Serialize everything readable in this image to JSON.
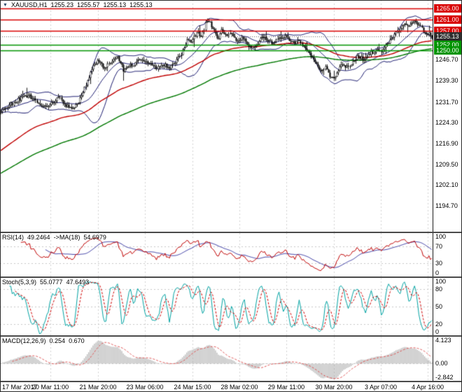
{
  "legend": {
    "symbol": "XAUUSD,H1",
    "open": "1255.23",
    "high": "1255.57",
    "low": "1255.13",
    "close": "1255.13"
  },
  "colors": {
    "resistance_line": "#d90000",
    "support_line": "#009400",
    "current_price_line": "#666666",
    "bollinger": "#1a1a70",
    "ma_fast": "#c00000",
    "ma_slow": "#007800",
    "rsi_line": "#c00000",
    "rsi_ma_line": "#4343a8",
    "stoch_main": "#00a3a3",
    "stoch_signal": "#d00000",
    "macd_hist": "#b4b4b4",
    "macd_signal": "#e05555",
    "grid": "#d2d2d2",
    "level_dash": "#c8c8c8",
    "candle": "#000000"
  },
  "indicators": {
    "rsi": {
      "title": "RSI(14)",
      "value": "49.2464",
      "ma_title": "->MA(18)",
      "ma_value": "54.6979",
      "ticks": [
        "100",
        "70",
        "30",
        "0"
      ],
      "levels": [
        70,
        30
      ],
      "range": [
        0,
        100
      ]
    },
    "stoch": {
      "title": "Stoch(5,3,9)",
      "value": "55.0777",
      "signal_value": "47.6493",
      "ticks": [
        "100",
        "80",
        "50",
        "20",
        "0"
      ],
      "levels": [
        80,
        50,
        20
      ],
      "range": [
        0,
        100
      ]
    },
    "macd": {
      "title": "MACD(12,26,9)",
      "value": "0.254",
      "signal_value": "0.670",
      "ticks": [
        "4.123",
        "0.00",
        "-2.842"
      ],
      "range": [
        -3.1,
        4.6
      ]
    }
  },
  "chart_data": {
    "type": "candlestick",
    "symbol": "XAUUSD",
    "timeframe": "H1",
    "last_quote": {
      "open": 1255.23,
      "high": 1255.57,
      "low": 1255.13,
      "close": 1255.13
    },
    "current_price": 1255.13,
    "bars": 300,
    "y_axis": {
      "ticks": [
        "1246.70",
        "1239.30",
        "1231.70",
        "1224.30",
        "1216.90",
        "1209.50",
        "1202.10",
        "1194.70"
      ],
      "top": 1268.0,
      "bottom": 1185.5
    },
    "price_levels": [
      {
        "value": 1265.0,
        "label": "1265.00",
        "type": "resistance"
      },
      {
        "value": 1261.0,
        "label": "1261.00",
        "type": "resistance"
      },
      {
        "value": 1257.0,
        "label": "1257.00",
        "type": "resistance"
      },
      {
        "value": 1255.13,
        "label": "1255.13",
        "type": "current"
      },
      {
        "value": 1252.0,
        "label": "1252.00",
        "type": "support"
      },
      {
        "value": 1250.0,
        "label": "1250.00",
        "type": "support"
      }
    ],
    "x_labels": [
      {
        "text": "17 Mar 2017",
        "f": 0.038
      },
      {
        "text": "20 Mar 11:00",
        "f": 0.1165
      },
      {
        "text": "21 Mar 20:00",
        "f": 0.2265
      },
      {
        "text": "23 Mar 06:00",
        "f": 0.335
      },
      {
        "text": "24 Mar 15:00",
        "f": 0.445
      },
      {
        "text": "28 Mar 02:00",
        "f": 0.5534
      },
      {
        "text": "29 Mar 11:00",
        "f": 0.6618
      },
      {
        "text": "30 Mar 20:00",
        "f": 0.7718
      },
      {
        "text": "3 Apr 07:00",
        "f": 0.8803
      },
      {
        "text": "4 Apr 16:00",
        "f": 0.9887
      }
    ],
    "price_path": [
      [
        0.0,
        1229.0
      ],
      [
        0.02,
        1230.5
      ],
      [
        0.04,
        1232.5
      ],
      [
        0.06,
        1234.0
      ],
      [
        0.075,
        1233.0
      ],
      [
        0.09,
        1231.0
      ],
      [
        0.105,
        1229.5
      ],
      [
        0.12,
        1231.5
      ],
      [
        0.135,
        1233.0
      ],
      [
        0.15,
        1230.5
      ],
      [
        0.165,
        1228.8
      ],
      [
        0.18,
        1231.5
      ],
      [
        0.195,
        1237.0
      ],
      [
        0.21,
        1243.5
      ],
      [
        0.225,
        1246.5
      ],
      [
        0.24,
        1244.0
      ],
      [
        0.255,
        1246.0
      ],
      [
        0.27,
        1247.5
      ],
      [
        0.285,
        1243.0
      ],
      [
        0.3,
        1244.5
      ],
      [
        0.315,
        1246.0
      ],
      [
        0.33,
        1246.5
      ],
      [
        0.345,
        1245.0
      ],
      [
        0.36,
        1243.8
      ],
      [
        0.375,
        1245.5
      ],
      [
        0.39,
        1243.5
      ],
      [
        0.405,
        1246.0
      ],
      [
        0.42,
        1249.5
      ],
      [
        0.432,
        1253.5
      ],
      [
        0.444,
        1253.0
      ],
      [
        0.455,
        1257.0
      ],
      [
        0.465,
        1255.0
      ],
      [
        0.475,
        1259.5
      ],
      [
        0.483,
        1261.0
      ],
      [
        0.492,
        1257.5
      ],
      [
        0.502,
        1254.0
      ],
      [
        0.512,
        1257.0
      ],
      [
        0.522,
        1255.0
      ],
      [
        0.532,
        1256.5
      ],
      [
        0.545,
        1254.0
      ],
      [
        0.558,
        1254.5
      ],
      [
        0.57,
        1253.0
      ],
      [
        0.582,
        1250.5
      ],
      [
        0.594,
        1252.5
      ],
      [
        0.606,
        1255.0
      ],
      [
        0.618,
        1254.0
      ],
      [
        0.63,
        1252.0
      ],
      [
        0.645,
        1254.5
      ],
      [
        0.66,
        1255.5
      ],
      [
        0.675,
        1252.5
      ],
      [
        0.69,
        1253.5
      ],
      [
        0.705,
        1251.0
      ],
      [
        0.718,
        1248.0
      ],
      [
        0.73,
        1245.5
      ],
      [
        0.742,
        1242.5
      ],
      [
        0.752,
        1244.0
      ],
      [
        0.762,
        1241.0
      ],
      [
        0.772,
        1240.0
      ],
      [
        0.782,
        1243.0
      ],
      [
        0.792,
        1245.5
      ],
      [
        0.802,
        1244.0
      ],
      [
        0.815,
        1246.0
      ],
      [
        0.828,
        1248.0
      ],
      [
        0.842,
        1247.0
      ],
      [
        0.856,
        1249.0
      ],
      [
        0.87,
        1250.0
      ],
      [
        0.882,
        1249.5
      ],
      [
        0.894,
        1252.0
      ],
      [
        0.908,
        1255.0
      ],
      [
        0.922,
        1257.5
      ],
      [
        0.936,
        1259.5
      ],
      [
        0.948,
        1259.0
      ],
      [
        0.96,
        1260.5
      ],
      [
        0.972,
        1258.5
      ],
      [
        0.984,
        1256.5
      ],
      [
        1.0,
        1255.1
      ]
    ],
    "overlays": {
      "bollinger": {
        "period": 20,
        "deviation": 2
      },
      "ma_fast": {
        "type": "ema",
        "seed": 1214,
        "alpha": 0.026
      },
      "ma_slow": {
        "type": "ema",
        "seed": 1206,
        "alpha": 0.013
      }
    }
  }
}
